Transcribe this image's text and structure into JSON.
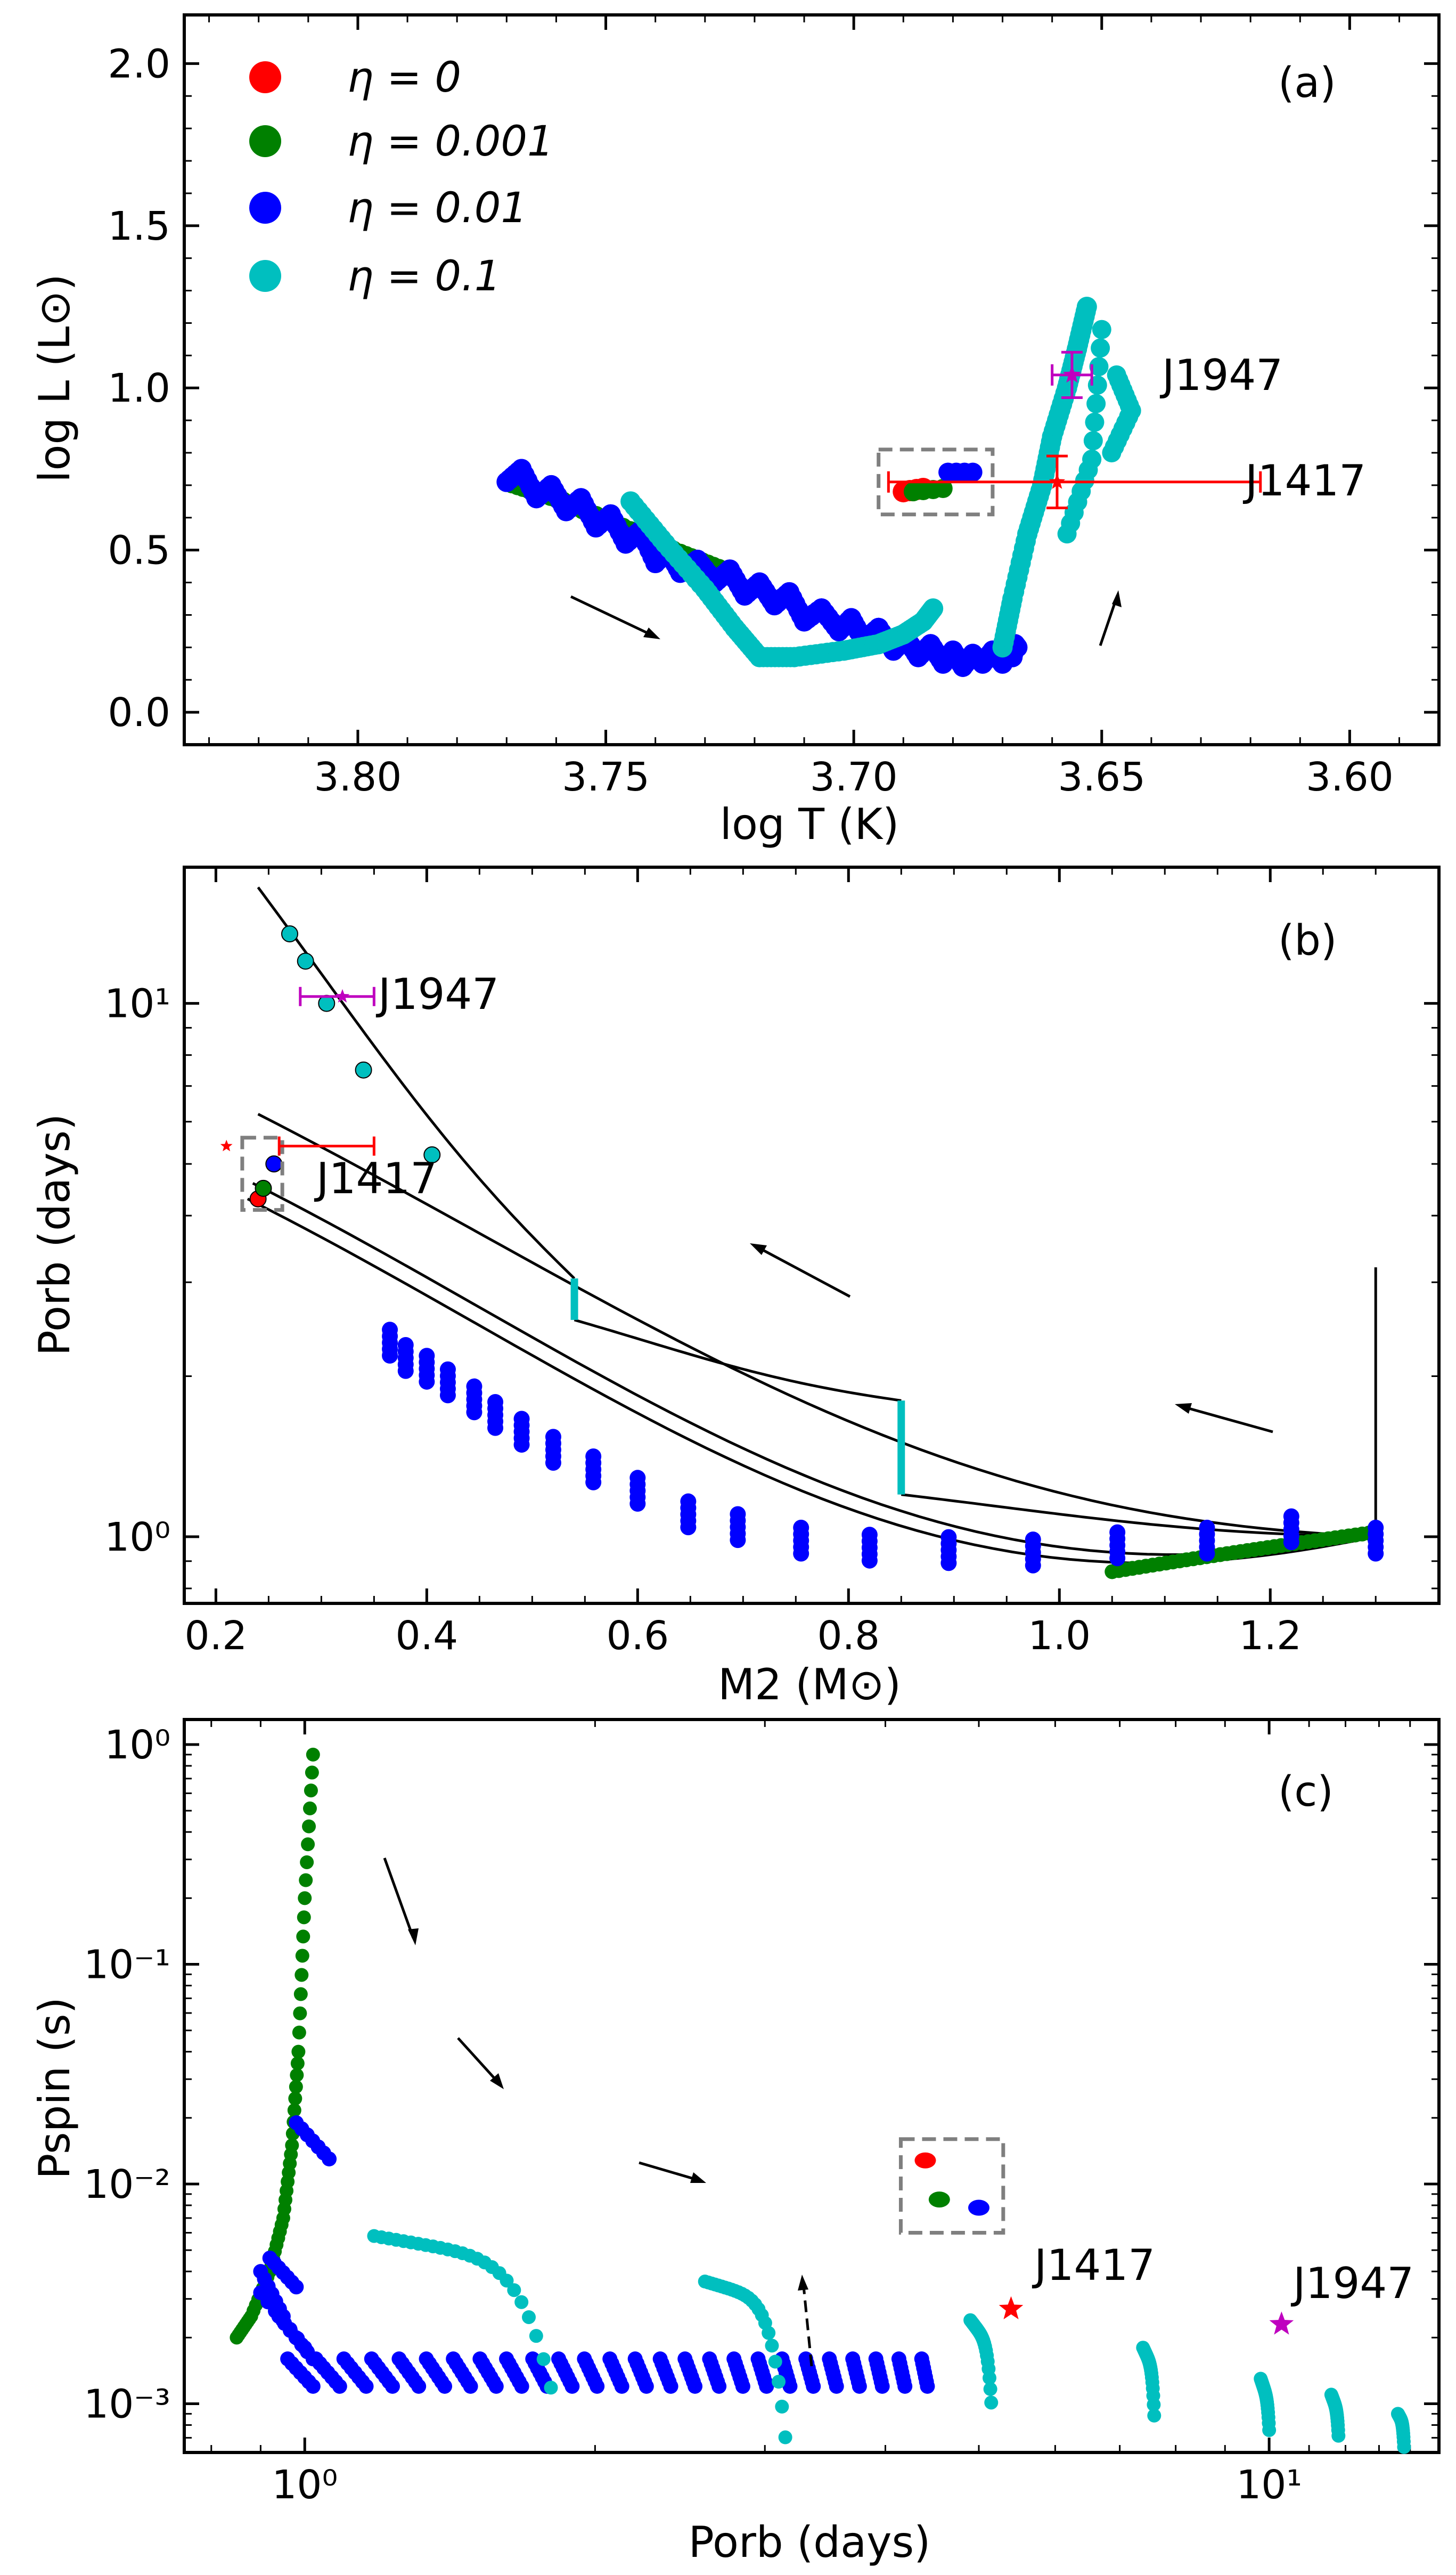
{
  "chart_data": [
    {
      "panel": "(a)",
      "type": "scatter",
      "xlabel": "log T (K)",
      "ylabel": "log L (L_sun)",
      "xlim": [
        3.835,
        3.582
      ],
      "ylim": [
        -0.1,
        2.15
      ],
      "x_ticks": [
        "3.80",
        "3.75",
        "3.70",
        "3.65",
        "3.60"
      ],
      "y_ticks": [
        "0.0",
        "0.5",
        "1.0",
        "1.5",
        "2.0"
      ],
      "colors": {
        "eta_0": "#ff0000",
        "eta_0.001": "#008000",
        "eta_0.01": "#0000ff",
        "eta_0.1": "#00bfbf",
        "J1947": "#bf00bf",
        "J1417": "#ff0000"
      },
      "legend": [
        {
          "label": "η = 0",
          "color": "#ff0000"
        },
        {
          "label": "η = 0.001",
          "color": "#008000"
        },
        {
          "label": "η = 0.01",
          "color": "#0000ff"
        },
        {
          "label": "η = 0.1",
          "color": "#00bfbf"
        }
      ],
      "series": [
        {
          "name": "η = 0.001",
          "color": "#008000",
          "x": [
            3.77,
            3.76,
            3.748,
            3.735,
            3.725
          ],
          "y": [
            0.71,
            0.66,
            0.58,
            0.49,
            0.43
          ]
        },
        {
          "name": "η = 0.01",
          "color": "#0000ff",
          "x": [
            3.77,
            3.764,
            3.758,
            3.752,
            3.746,
            3.74,
            3.735,
            3.728,
            3.722,
            3.716,
            3.71,
            3.703,
            3.698,
            3.692,
            3.687,
            3.682,
            3.678,
            3.674,
            3.67,
            3.668,
            3.667
          ],
          "y": [
            0.71,
            0.66,
            0.62,
            0.57,
            0.52,
            0.46,
            0.43,
            0.4,
            0.36,
            0.33,
            0.28,
            0.25,
            0.22,
            0.19,
            0.17,
            0.15,
            0.14,
            0.15,
            0.15,
            0.17,
            0.2
          ]
        },
        {
          "name": "η = 0.1",
          "color": "#00bfbf",
          "x": [
            3.745,
            3.738,
            3.73,
            3.724,
            3.719,
            3.712,
            3.702,
            3.695,
            3.69,
            3.686,
            3.684,
            3.67,
            3.668,
            3.665,
            3.662,
            3.66,
            3.657,
            3.655,
            3.653
          ],
          "y": [
            0.65,
            0.52,
            0.38,
            0.26,
            0.17,
            0.17,
            0.19,
            0.21,
            0.24,
            0.28,
            0.32,
            0.2,
            0.35,
            0.55,
            0.7,
            0.85,
            1.0,
            1.12,
            1.25
          ]
        },
        {
          "name": "η = 0 (end)",
          "color": "#ff0000",
          "x": [
            3.69
          ],
          "y": [
            0.68
          ]
        }
      ],
      "markers": [
        {
          "name": "J1947",
          "x": 3.656,
          "y": 1.04,
          "xerr": 0.004,
          "yerr": 0.07
        },
        {
          "name": "J1417",
          "x": 3.659,
          "y": 0.71,
          "xerr_low": 0.034,
          "xerr_high": 0.041,
          "yerr": 0.08
        }
      ],
      "boxes": [
        {
          "x": [
            3.695,
            3.672
          ],
          "y": [
            0.61,
            0.81
          ]
        }
      ]
    },
    {
      "panel": "(b)",
      "type": "scatter",
      "xlabel": "M2 (M_sun)",
      "ylabel": "P_orb (days)",
      "yscale": "log",
      "xlim": [
        0.17,
        1.36
      ],
      "ylim": [
        0.75,
        18
      ],
      "x_ticks": [
        "0.2",
        "0.4",
        "0.6",
        "0.8",
        "1.0",
        "1.2"
      ],
      "y_ticks": [
        "10⁰",
        "10¹"
      ],
      "curves_eta_0.01": {
        "M2_start": [
          1.3,
          1.22,
          1.14,
          1.055,
          0.975,
          0.895,
          0.82,
          0.755,
          0.695,
          0.648,
          0.6,
          0.558,
          0.52,
          0.49,
          0.465,
          0.445,
          0.42,
          0.4,
          0.38,
          0.365
        ],
        "P_start": [
          1.0,
          1.05,
          1.0,
          0.98,
          0.95,
          0.96,
          0.97,
          1.0,
          1.06,
          1.12,
          1.24,
          1.36,
          1.48,
          1.6,
          1.72,
          1.84,
          1.98,
          2.1,
          2.2,
          2.35
        ]
      },
      "curves_eta_0.1_jumps": [
        {
          "M2": 0.85,
          "P": [
            1.2,
            1.8
          ]
        },
        {
          "M2": 0.54,
          "P": [
            2.55,
            3.05
          ]
        }
      ],
      "cyan_points": [
        {
          "M2": 0.27,
          "P": 13.5
        },
        {
          "M2": 0.285,
          "P": 12.0
        },
        {
          "M2": 0.305,
          "P": 10.0
        },
        {
          "M2": 0.34,
          "P": 7.5
        },
        {
          "M2": 0.405,
          "P": 5.2
        }
      ],
      "markers": [
        {
          "name": "J1947",
          "M2": 0.32,
          "P": 10.3,
          "M2_err_low": 0.04,
          "M2_err_high": 0.03
        },
        {
          "name": "J1417",
          "M2": 0.26,
          "P": 5.4,
          "M2_err_low": 0.0,
          "M2_err_high": 0.09
        }
      ],
      "end_points": [
        {
          "eta": "0",
          "M2": 0.24,
          "P": 4.3
        },
        {
          "eta": "0.001",
          "M2": 0.245,
          "P": 4.5
        },
        {
          "eta": "0.01",
          "M2": 0.255,
          "P": 5.0
        }
      ]
    },
    {
      "panel": "(c)",
      "type": "scatter",
      "xlabel": "P_orb (days)",
      "ylabel": "P_spin (s)",
      "xscale": "log",
      "yscale": "log",
      "xlim": [
        0.75,
        15
      ],
      "ylim": [
        0.0006,
        1.3
      ],
      "x_ticks": [
        "10⁰",
        "10¹"
      ],
      "y_ticks": [
        "10⁻³",
        "10⁻²",
        "10⁻¹",
        "10⁰"
      ],
      "series": [
        {
          "name": "η = 0.001",
          "color": "#008000",
          "x": [
            0.85,
            0.88,
            0.92,
            0.95,
            0.97,
            0.985,
            1.0,
            1.02
          ],
          "y": [
            0.002,
            0.0025,
            0.004,
            0.007,
            0.015,
            0.04,
            0.2,
            0.9
          ]
        },
        {
          "name": "η = 0.1",
          "color": "#00bfbf",
          "x": [
            1.18,
            1.4,
            1.65,
            1.8
          ],
          "y": [
            0.0058,
            0.0052,
            0.0045,
            0.0012
          ]
        }
      ],
      "markers": [
        {
          "name": "J1417",
          "P_orb": 5.4,
          "P_spin": 0.0027
        },
        {
          "name": "J1947",
          "P_orb": 10.3,
          "P_spin": 0.0023
        }
      ],
      "end_points": [
        {
          "eta": "0",
          "P_orb": 4.4,
          "P_spin": 0.0128
        },
        {
          "eta": "0.001",
          "P_orb": 4.55,
          "P_spin": 0.0085
        },
        {
          "eta": "0.01",
          "P_orb": 5.0,
          "P_spin": 0.0078
        }
      ],
      "boxes": [
        {
          "x": [
            4.15,
            5.3
          ],
          "y": [
            0.006,
            0.016
          ]
        }
      ]
    }
  ],
  "labels": {
    "panel_a": "(a)",
    "panel_b": "(b)",
    "panel_c": "(c)",
    "j1947": "J1947",
    "j1417": "J1417",
    "xlabel_a": "log T (K)",
    "ylabel_a": "log L (L⊙)",
    "xlabel_b": "M2 (M⊙)",
    "ylabel_b": "Porb (days)",
    "xlabel_c": "Porb (days)",
    "ylabel_c": "Pspin (s)"
  }
}
